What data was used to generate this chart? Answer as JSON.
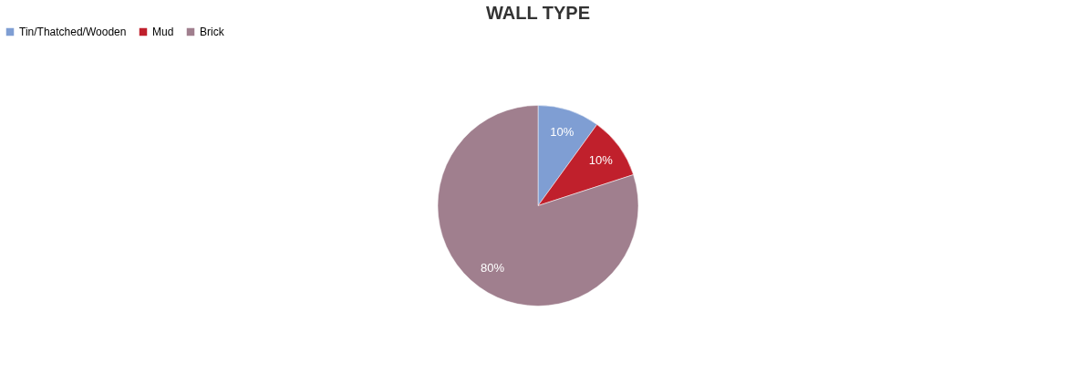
{
  "chart_data": {
    "type": "pie",
    "title": "WALL TYPE",
    "categories": [
      "Tin/Thatched/Wooden",
      "Mud",
      "Brick"
    ],
    "values": [
      10,
      10,
      80
    ],
    "colors": [
      "#7f9ed3",
      "#c0202c",
      "#a07f8e"
    ],
    "value_labels": [
      "10%",
      "10%",
      "80%"
    ],
    "legend": "top"
  }
}
